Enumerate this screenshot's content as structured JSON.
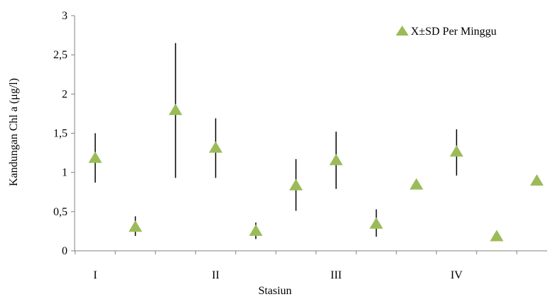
{
  "chart_data": {
    "type": "scatter",
    "title": "",
    "xlabel": "Stasiun",
    "ylabel": "Kandungan Chl a (μg/l)",
    "ylim": [
      0,
      3
    ],
    "yticks": [
      "0",
      "0,5",
      "1",
      "1,5",
      "2",
      "2,5",
      "3"
    ],
    "ytick_values": [
      0,
      0.5,
      1,
      1.5,
      2,
      2.5,
      3
    ],
    "categories": [
      "I",
      "II",
      "III",
      "IV"
    ],
    "grid": false,
    "legend_position": "top-right",
    "colors": {
      "marker": "#9BBB59",
      "errorbar": "#000000",
      "axis": "#808080"
    },
    "series": [
      {
        "name": "X±SD Per Minggu",
        "points": [
          {
            "x": 1,
            "y": 1.18,
            "low": 0.87,
            "high": 1.5
          },
          {
            "x": 2,
            "y": 0.3,
            "low": 0.19,
            "high": 0.44
          },
          {
            "x": 3,
            "y": 1.79,
            "low": 0.93,
            "high": 2.65
          },
          {
            "x": 4,
            "y": 1.31,
            "low": 0.93,
            "high": 1.69
          },
          {
            "x": 5,
            "y": 0.25,
            "low": 0.15,
            "high": 0.36
          },
          {
            "x": 6,
            "y": 0.83,
            "low": 0.51,
            "high": 1.17
          },
          {
            "x": 7,
            "y": 1.15,
            "low": 0.79,
            "high": 1.52
          },
          {
            "x": 8,
            "y": 0.34,
            "low": 0.18,
            "high": 0.53
          },
          {
            "x": 9,
            "y": 0.84,
            "low": 0.84,
            "high": 0.84
          },
          {
            "x": 10,
            "y": 1.26,
            "low": 0.96,
            "high": 1.55
          },
          {
            "x": 11,
            "y": 0.18,
            "low": 0.18,
            "high": 0.18
          },
          {
            "x": 12,
            "y": 0.89,
            "low": 0.89,
            "high": 0.89
          }
        ]
      }
    ],
    "category_positions": [
      1,
      4,
      7,
      10
    ],
    "x_count": 12
  }
}
